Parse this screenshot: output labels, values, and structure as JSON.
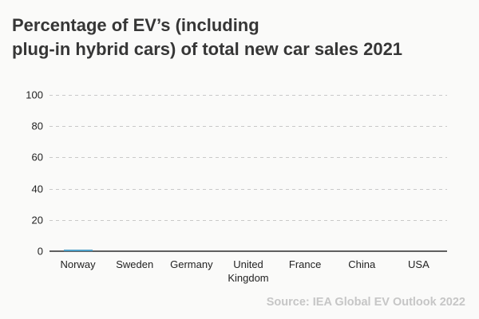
{
  "title": {
    "lines": [
      "Percentage of EV’s (including",
      "plug-in hybrid cars) of total new car sales 2021"
    ]
  },
  "source": "Source: IEA Global EV Outlook 2022",
  "colors": {
    "background": "#fafaf9",
    "title_text": "#363636",
    "grid_line": "#c9c9c9",
    "axis_line": "#5f5f5f",
    "tick_text": "#222222",
    "source_text": "#c6c6c6",
    "bar_accent": "#4d9fc7"
  },
  "chart_data": {
    "type": "bar",
    "title": "Percentage of EV’s (including plug-in hybrid cars) of total new car sales 2021",
    "categories": [
      "Norway",
      "Sweden",
      "Germany",
      "United Kingdom",
      "France",
      "China",
      "USA"
    ],
    "values": [
      1,
      0,
      0,
      0,
      0,
      0,
      0
    ],
    "xlabel": "",
    "ylabel": "",
    "ylim": [
      0,
      100
    ],
    "yticks": [
      0,
      20,
      40,
      60,
      80,
      100
    ],
    "grid": "horizontal dashed",
    "legend": "none",
    "bar_color": "#4d9fc7",
    "displayed_state": "bars rendered at ~zero height; only a thin blue sliver visible above Norway at the baseline"
  }
}
